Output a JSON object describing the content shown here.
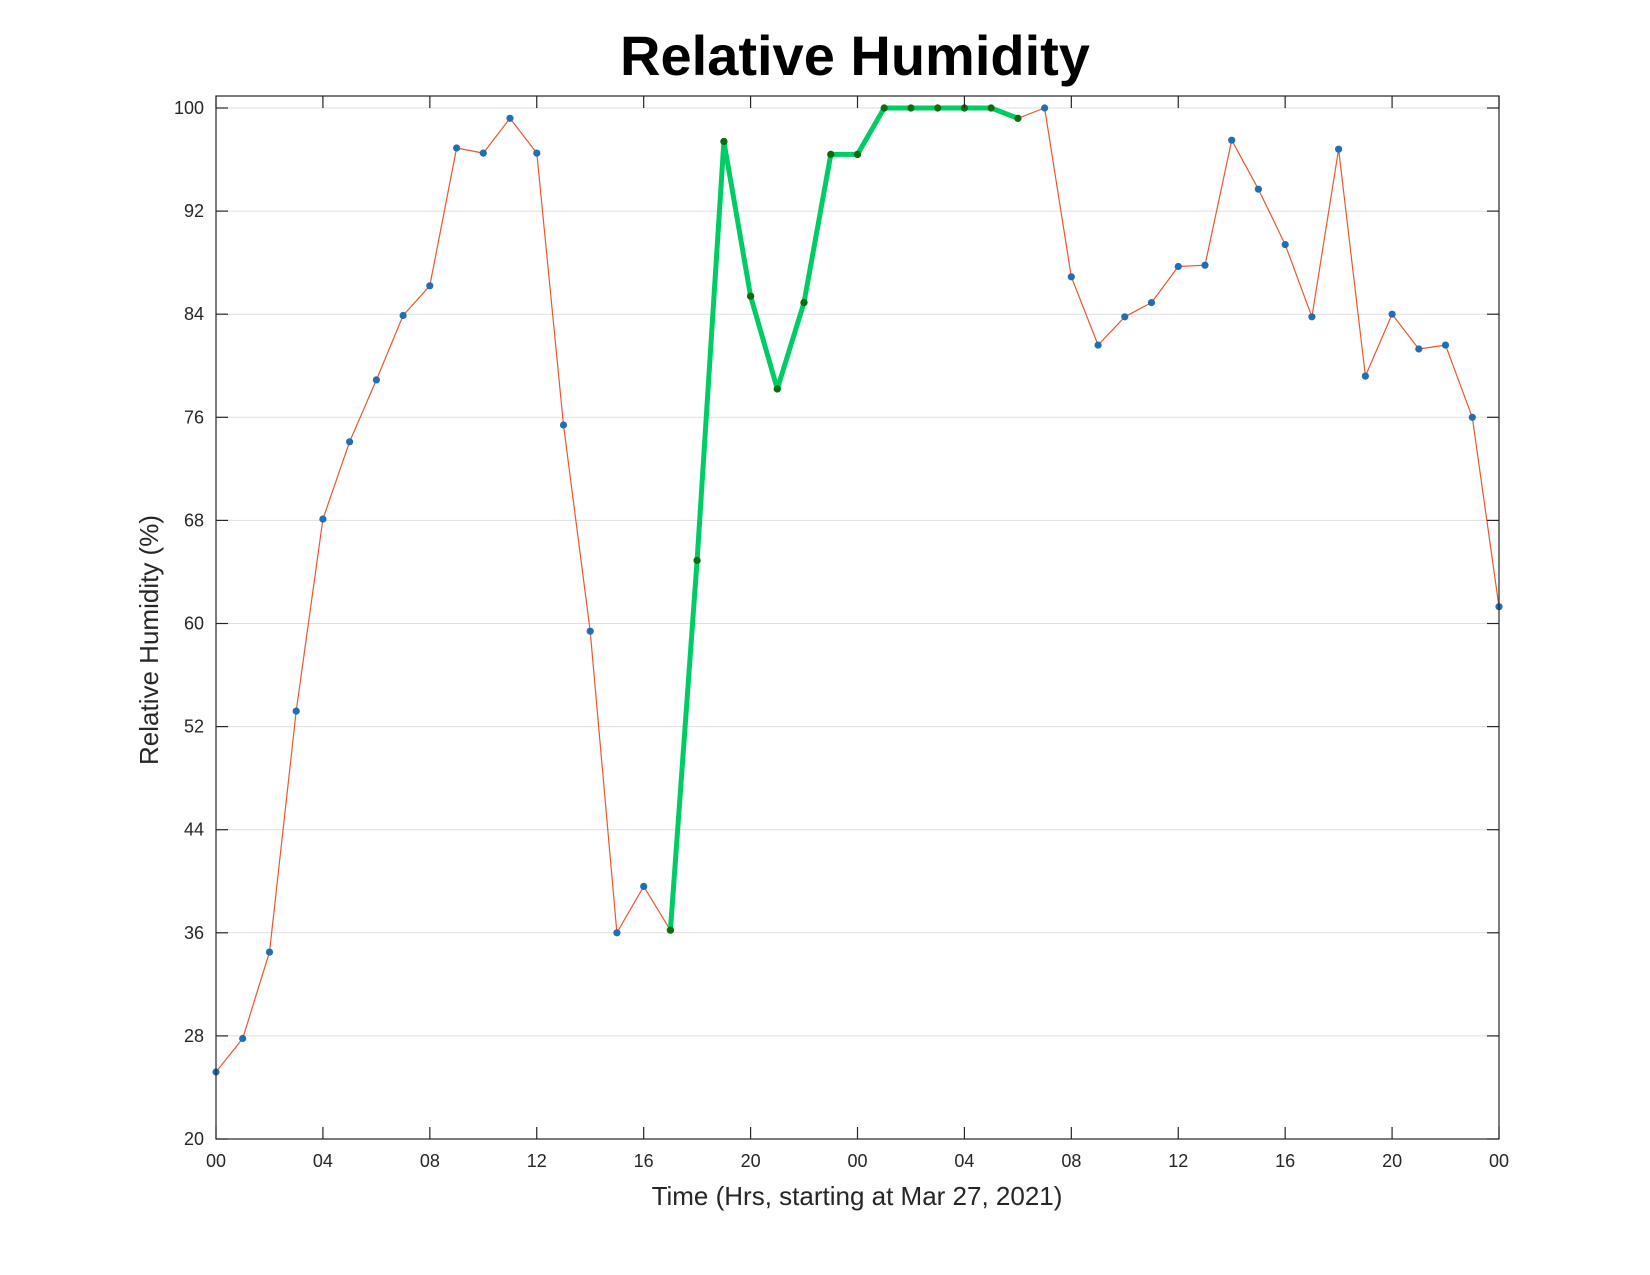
{
  "chart_data": {
    "type": "line",
    "title": "Relative Humidity",
    "xlabel": "Time (Hrs, starting at Mar 27, 2021)",
    "ylabel": "Relative Humidity (%)",
    "xlim": [
      0,
      48
    ],
    "ylim": [
      20,
      100
    ],
    "x_ticks": [
      0,
      4,
      8,
      12,
      16,
      20,
      24,
      28,
      32,
      36,
      40,
      44,
      48
    ],
    "x_tick_labels": [
      "00",
      "04",
      "08",
      "12",
      "16",
      "20",
      "00",
      "04",
      "08",
      "12",
      "16",
      "20",
      "00"
    ],
    "y_ticks": [
      20,
      28,
      36,
      44,
      52,
      60,
      68,
      76,
      84,
      92,
      100
    ],
    "y_tick_labels": [
      "20",
      "28",
      "36",
      "44",
      "52",
      "60",
      "68",
      "76",
      "84",
      "92",
      "100"
    ],
    "grid": "horizontal",
    "x": [
      0,
      1,
      2,
      3,
      4,
      5,
      6,
      7,
      8,
      9,
      10,
      11,
      12,
      13,
      14,
      15,
      16,
      17,
      18,
      19,
      20,
      21,
      22,
      23,
      24,
      25,
      26,
      27,
      28,
      29,
      30,
      31,
      32,
      33,
      34,
      35,
      36,
      37,
      38,
      39,
      40,
      41,
      42,
      43,
      44,
      45,
      46,
      47,
      48
    ],
    "series": [
      {
        "color": "#e8582c",
        "marker_color": "#1f6fb4",
        "values": [
          25.2,
          27.8,
          34.5,
          53.2,
          68.1,
          74.1,
          78.9,
          83.9,
          86.2,
          96.9,
          96.5,
          99.2,
          96.5,
          75.4,
          59.4,
          36.0,
          39.6,
          36.2,
          64.9,
          97.4,
          85.4,
          78.2,
          84.9,
          96.4,
          96.4,
          100,
          100,
          100,
          100,
          100,
          99.2,
          100,
          86.9,
          81.6,
          83.8,
          84.9,
          87.7,
          87.8,
          97.5,
          93.7,
          89.4,
          83.8,
          96.8,
          79.2,
          84.0,
          81.3,
          81.6,
          76.0,
          61.3
        ]
      },
      {
        "color": "#00cc66",
        "marker_color": "#0a6e0a",
        "x": [
          17,
          18,
          19,
          20,
          21,
          22,
          23,
          24,
          25,
          26,
          27,
          28,
          29,
          30
        ],
        "values": [
          36.2,
          64.9,
          97.4,
          85.4,
          78.2,
          84.9,
          96.4,
          96.4,
          100,
          100,
          100,
          100,
          100,
          99.2
        ]
      }
    ]
  }
}
